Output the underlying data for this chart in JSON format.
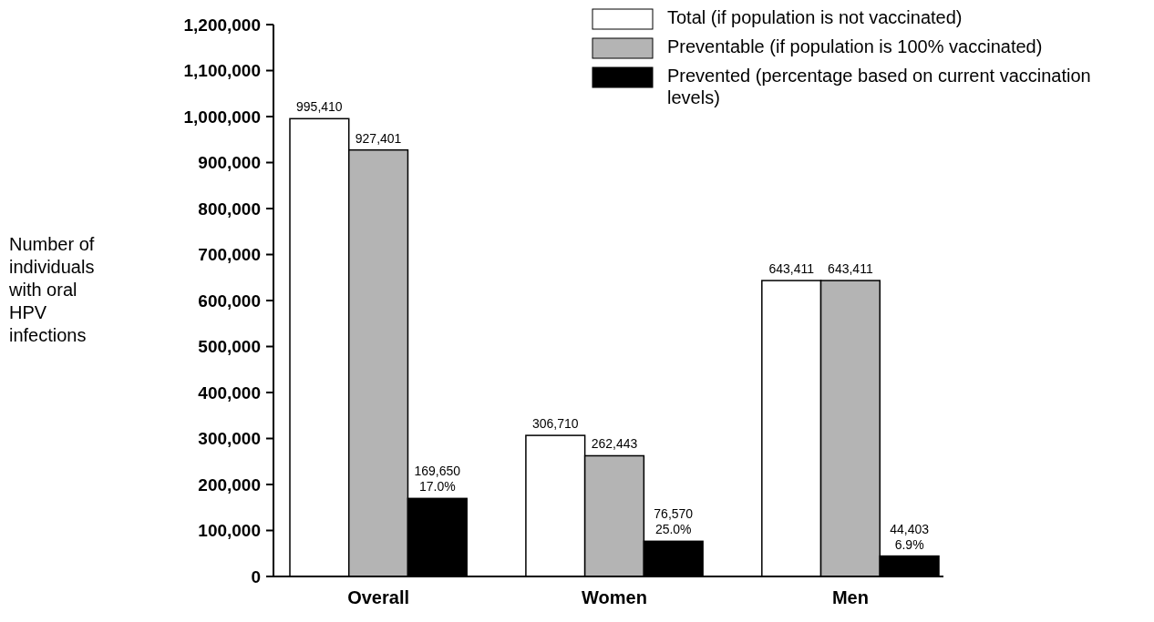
{
  "chart_data": {
    "type": "bar",
    "ylabel": "Number of individuals with oral HPV infections",
    "categories": [
      "Overall",
      "Women",
      "Men"
    ],
    "series": [
      {
        "name": "Total (if population is not vaccinated)",
        "color": "#ffffff",
        "values": [
          995410,
          306710,
          643411
        ],
        "value_labels": [
          "995,410",
          "306,710",
          "643,411"
        ]
      },
      {
        "name": "Preventable (if population is 100% vaccinated)",
        "color": "#b4b4b4",
        "values": [
          927401,
          262443,
          643411
        ],
        "value_labels": [
          "927,401",
          "262,443",
          "643,411"
        ]
      },
      {
        "name": "Prevented (percentage based on current vaccination levels)",
        "color": "#000000",
        "values": [
          169650,
          76570,
          44403
        ],
        "value_labels": [
          "169,650\n17.0%",
          "76,570\n25.0%",
          "44,403\n6.9%"
        ]
      }
    ],
    "ylim": [
      0,
      1200000
    ],
    "yticks": [
      {
        "value": 0,
        "label": "0"
      },
      {
        "value": 100000,
        "label": "100,000"
      },
      {
        "value": 200000,
        "label": "200,000"
      },
      {
        "value": 300000,
        "label": "300,000"
      },
      {
        "value": 400000,
        "label": "400,000"
      },
      {
        "value": 500000,
        "label": "500,000"
      },
      {
        "value": 600000,
        "label": "600,000"
      },
      {
        "value": 700000,
        "label": "700,000"
      },
      {
        "value": 800000,
        "label": "800,000"
      },
      {
        "value": 900000,
        "label": "900,000"
      },
      {
        "value": 1000000,
        "label": "1,000,000"
      },
      {
        "value": 1100000,
        "label": "1,100,000"
      },
      {
        "value": 1200000,
        "label": "1,200,000"
      }
    ],
    "grid": false,
    "legend": "top right"
  }
}
